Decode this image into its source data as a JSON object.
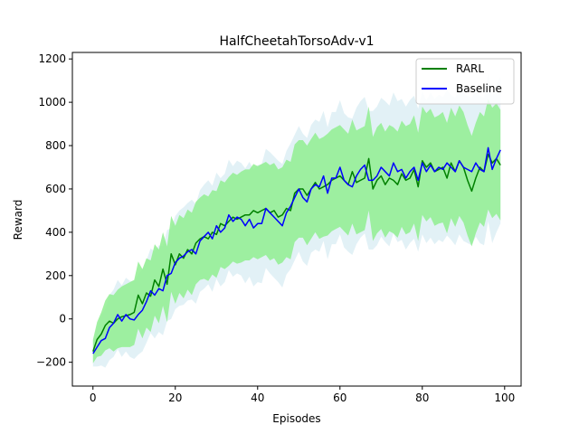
{
  "chart_data": {
    "type": "line",
    "title": "HalfCheetahTorsoAdv-v1",
    "xlabel": "Episodes",
    "ylabel": "Reward",
    "xlim": [
      -5,
      104
    ],
    "ylim": [
      -310,
      1230
    ],
    "xticks": [
      0,
      20,
      40,
      60,
      80,
      100
    ],
    "yticks": [
      -200,
      0,
      200,
      400,
      600,
      800,
      1000,
      1200
    ],
    "grid": false,
    "legend_position": "top-right",
    "bands": [
      {
        "series": "Baseline",
        "color": "#add8e6",
        "opacity": 0.35,
        "halfwidth": [
          60,
          90,
          115,
          135,
          150,
          155,
          160,
          165,
          170,
          175,
          180,
          185,
          190,
          190,
          195,
          200,
          200,
          205,
          210,
          210,
          215,
          220,
          225,
          225,
          230,
          230,
          235,
          240,
          240,
          245,
          245,
          250,
          250,
          255,
          255,
          260,
          260,
          265,
          265,
          270,
          270,
          275,
          275,
          280,
          280,
          280,
          285,
          285,
          290,
          290,
          290,
          295,
          295,
          295,
          300,
          300,
          300,
          305,
          305,
          305,
          310,
          310,
          310,
          315,
          315,
          315,
          315,
          320,
          320,
          320,
          320,
          325,
          325,
          325,
          325,
          325,
          330,
          330,
          330,
          330,
          330,
          330,
          335,
          335,
          335,
          335,
          335,
          335,
          340,
          340,
          340,
          340,
          340,
          340,
          340,
          340,
          340,
          340,
          340,
          340
        ]
      },
      {
        "series": "RARL",
        "color": "#90ee90",
        "opacity": 0.85,
        "halfwidth": [
          55,
          80,
          100,
          115,
          125,
          130,
          135,
          140,
          145,
          150,
          150,
          155,
          160,
          160,
          165,
          165,
          170,
          170,
          175,
          175,
          180,
          180,
          185,
          185,
          190,
          190,
          190,
          195,
          195,
          195,
          200,
          200,
          200,
          205,
          205,
          205,
          210,
          210,
          210,
          215,
          215,
          215,
          215,
          220,
          220,
          220,
          220,
          225,
          225,
          225,
          225,
          225,
          230,
          230,
          230,
          230,
          230,
          235,
          235,
          235,
          235,
          235,
          235,
          240,
          240,
          240,
          240,
          240,
          240,
          245,
          245,
          245,
          245,
          245,
          245,
          245,
          250,
          250,
          250,
          250,
          250,
          250,
          250,
          250,
          250,
          255,
          255,
          255,
          255,
          255,
          255,
          255,
          255,
          255,
          255,
          255,
          255,
          255,
          255,
          255
        ]
      }
    ],
    "series": [
      {
        "name": "RARL",
        "color": "#008000",
        "x": [
          0,
          1,
          2,
          3,
          4,
          5,
          6,
          7,
          8,
          9,
          10,
          11,
          12,
          13,
          14,
          15,
          16,
          17,
          18,
          19,
          20,
          21,
          22,
          23,
          24,
          25,
          26,
          27,
          28,
          29,
          30,
          31,
          32,
          33,
          34,
          35,
          36,
          37,
          38,
          39,
          40,
          41,
          42,
          43,
          44,
          45,
          46,
          47,
          48,
          49,
          50,
          51,
          52,
          53,
          54,
          55,
          56,
          57,
          58,
          59,
          60,
          61,
          62,
          63,
          64,
          65,
          66,
          67,
          68,
          69,
          70,
          71,
          72,
          73,
          74,
          75,
          76,
          77,
          78,
          79,
          80,
          81,
          82,
          83,
          84,
          85,
          86,
          87,
          88,
          89,
          90,
          91,
          92,
          93,
          94,
          95,
          96,
          97,
          98,
          99
        ],
        "values": [
          -150,
          -95,
          -70,
          -30,
          -10,
          -20,
          0,
          10,
          15,
          20,
          30,
          110,
          70,
          120,
          105,
          180,
          150,
          230,
          160,
          300,
          250,
          300,
          280,
          320,
          300,
          350,
          370,
          380,
          370,
          400,
          390,
          440,
          430,
          450,
          470,
          460,
          470,
          480,
          480,
          500,
          490,
          500,
          510,
          490,
          500,
          470,
          480,
          510,
          500,
          580,
          600,
          600,
          570,
          600,
          630,
          600,
          610,
          620,
          640,
          650,
          660,
          640,
          620,
          680,
          630,
          640,
          650,
          740,
          600,
          640,
          660,
          620,
          650,
          640,
          620,
          670,
          640,
          650,
          690,
          610,
          730,
          700,
          720,
          680,
          690,
          700,
          650,
          720,
          680,
          730,
          700,
          640,
          590,
          650,
          700,
          680,
          760,
          720,
          740,
          710
        ]
      },
      {
        "name": "Baseline",
        "color": "#0000ff",
        "x": [
          0,
          1,
          2,
          3,
          4,
          5,
          6,
          7,
          8,
          9,
          10,
          11,
          12,
          13,
          14,
          15,
          16,
          17,
          18,
          19,
          20,
          21,
          22,
          23,
          24,
          25,
          26,
          27,
          28,
          29,
          30,
          31,
          32,
          33,
          34,
          35,
          36,
          37,
          38,
          39,
          40,
          41,
          42,
          43,
          44,
          45,
          46,
          47,
          48,
          49,
          50,
          51,
          52,
          53,
          54,
          55,
          56,
          57,
          58,
          59,
          60,
          61,
          62,
          63,
          64,
          65,
          66,
          67,
          68,
          69,
          70,
          71,
          72,
          73,
          74,
          75,
          76,
          77,
          78,
          79,
          80,
          81,
          82,
          83,
          84,
          85,
          86,
          87,
          88,
          89,
          90,
          91,
          92,
          93,
          94,
          95,
          96,
          97,
          98,
          99
        ],
        "values": [
          -160,
          -130,
          -100,
          -90,
          -40,
          -20,
          20,
          -10,
          20,
          0,
          -5,
          20,
          40,
          80,
          130,
          110,
          140,
          130,
          200,
          210,
          260,
          280,
          290,
          310,
          320,
          300,
          360,
          380,
          400,
          370,
          430,
          400,
          420,
          480,
          450,
          470,
          460,
          430,
          460,
          420,
          440,
          440,
          510,
          490,
          470,
          450,
          430,
          490,
          520,
          560,
          600,
          560,
          540,
          600,
          620,
          610,
          660,
          580,
          650,
          650,
          700,
          640,
          620,
          610,
          660,
          690,
          710,
          640,
          640,
          660,
          700,
          680,
          660,
          720,
          680,
          690,
          650,
          680,
          700,
          640,
          720,
          680,
          710,
          680,
          700,
          690,
          720,
          700,
          680,
          730,
          700,
          690,
          680,
          720,
          690,
          680,
          790,
          690,
          740,
          780
        ]
      }
    ]
  }
}
